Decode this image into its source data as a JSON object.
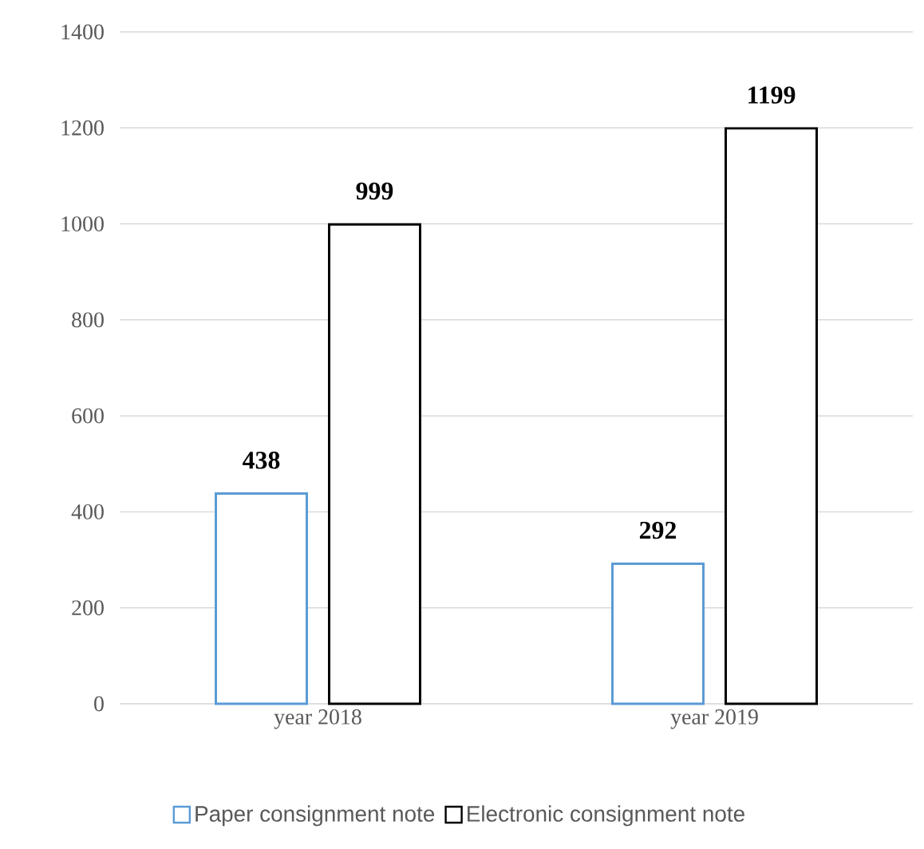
{
  "chart_data": {
    "type": "bar",
    "categories": [
      "year 2018",
      "year 2019"
    ],
    "series": [
      {
        "name": "Paper consignment note",
        "color": "#5b9bd5",
        "values": [
          438,
          292
        ]
      },
      {
        "name": "Electronic consignment note",
        "color": "#000000",
        "values": [
          999,
          1199
        ]
      }
    ],
    "ylim": [
      0,
      1400
    ],
    "yticks": [
      0,
      200,
      400,
      600,
      800,
      1000,
      1200,
      1400
    ],
    "grid": "y",
    "legend": "bottom",
    "data_labels": true
  }
}
